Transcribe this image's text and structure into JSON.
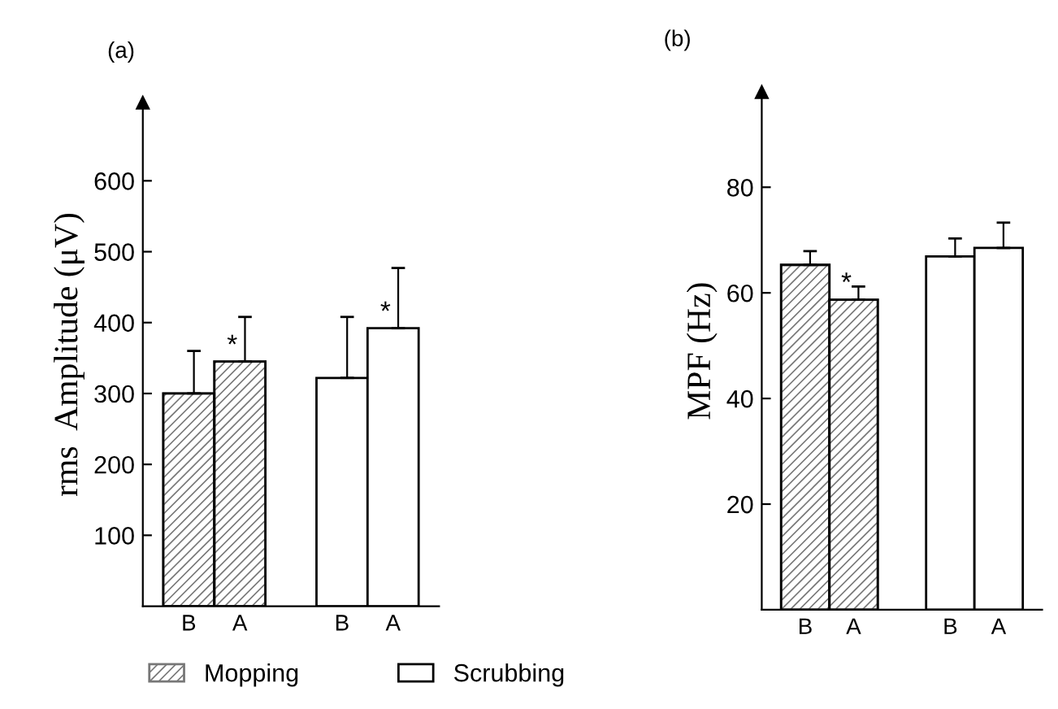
{
  "chart_data": [
    {
      "type": "bar",
      "title": "(a)",
      "ylabel": "rms  Amplitude (μV)",
      "categories": [
        "B",
        "A",
        null,
        "B",
        "A"
      ],
      "ylim": [
        0,
        710
      ],
      "yticks": [
        100,
        200,
        300,
        400,
        500,
        600
      ],
      "grid": false,
      "legend": "bottom",
      "series": [
        {
          "name": "Mopping",
          "color": "#777777",
          "values": [
            300,
            345,
            null,
            null,
            null
          ],
          "errors": [
            60,
            63,
            null,
            null,
            null
          ]
        },
        {
          "name": "Scrubbing",
          "color": "#ffffff",
          "values": [
            null,
            null,
            null,
            322,
            392
          ],
          "errors": [
            null,
            null,
            null,
            86,
            85
          ]
        }
      ],
      "annotations": [
        "*",
        "*"
      ]
    },
    {
      "type": "bar",
      "title": "(b)",
      "ylabel": "MPF (Hz)",
      "categories": [
        "B",
        "A",
        null,
        "B",
        "A"
      ],
      "ylim": [
        0,
        98
      ],
      "yticks": [
        20,
        40,
        60,
        80
      ],
      "grid": false,
      "series": [
        {
          "color": "#777777",
          "values": [
            65.3,
            58.7,
            null,
            null,
            null
          ],
          "errors": [
            2.6,
            2.5,
            null,
            null,
            null
          ]
        },
        {
          "color": "#ffffff",
          "values": [
            null,
            null,
            null,
            66.9,
            68.5
          ],
          "errors": [
            null,
            null,
            null,
            3.4,
            4.8
          ]
        }
      ],
      "annotations": [
        "*"
      ]
    }
  ]
}
